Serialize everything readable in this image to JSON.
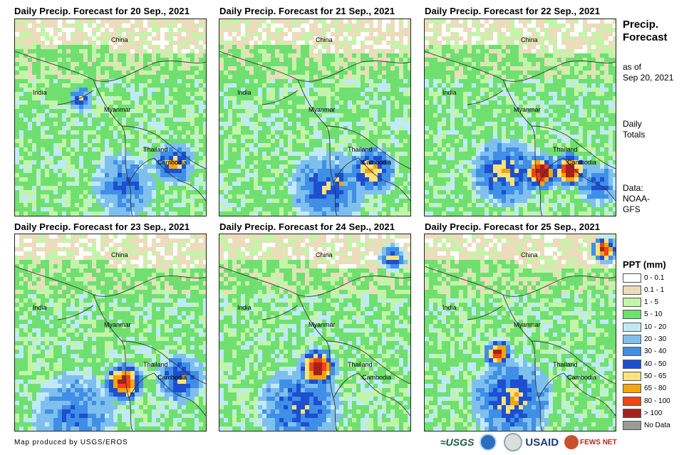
{
  "maps": [
    {
      "title": "Daily Precip. Forecast for 20 Sep., 2021",
      "labels": [
        "China",
        "India",
        "Myanmar",
        "Thailand",
        "Cambodia"
      ]
    },
    {
      "title": "Daily Precip. Forecast for 21 Sep., 2021",
      "labels": [
        "China",
        "India",
        "Myanmar",
        "Thailand",
        "Cambodia"
      ]
    },
    {
      "title": "Daily Precip. Forecast for 22 Sep., 2021",
      "labels": [
        "China",
        "India",
        "Myanmar",
        "Thailand",
        "Cambodia"
      ]
    },
    {
      "title": "Daily Precip. Forecast for 23 Sep., 2021",
      "labels": [
        "China",
        "India",
        "Myanmar",
        "Thailand",
        "Cambodia"
      ]
    },
    {
      "title": "Daily Precip. Forecast for 24 Sep., 2021",
      "labels": [
        "China",
        "India",
        "Myanmar",
        "Thailand",
        "Cambodia"
      ]
    },
    {
      "title": "Daily Precip. Forecast for 25 Sep., 2021",
      "labels": [
        "China",
        "India",
        "Myanmar",
        "Thailand",
        "Cambodia"
      ]
    }
  ],
  "side": {
    "heading_line1": "Precip.",
    "heading_line2": "Forecast",
    "asof_line1": "as of",
    "asof_line2": "Sep 20, 2021",
    "daily_line1": "Daily",
    "daily_line2": "Totals",
    "data_line1": "Data:",
    "data_line2": "NOAA-",
    "data_line3": "GFS"
  },
  "legend": {
    "title": "PPT (mm)",
    "items": [
      {
        "label": "0 - 0.1",
        "color": "#ffffff"
      },
      {
        "label": "0.1 - 1",
        "color": "#ecdcbc"
      },
      {
        "label": "1 - 5",
        "color": "#c2f5a7"
      },
      {
        "label": "5 - 10",
        "color": "#6fe070"
      },
      {
        "label": "10 - 20",
        "color": "#bfeaf7"
      },
      {
        "label": "20 - 30",
        "color": "#7fbfee"
      },
      {
        "label": "30 - 40",
        "color": "#3f8fe6"
      },
      {
        "label": "40 - 50",
        "color": "#1d4fd0"
      },
      {
        "label": "50 - 65",
        "color": "#fbe27c"
      },
      {
        "label": "65 - 80",
        "color": "#f2a50e"
      },
      {
        "label": "80 - 100",
        "color": "#f04414"
      },
      {
        "label": "> 100",
        "color": "#a8201e"
      },
      {
        "label": "No Data",
        "color": "#9a9a9a"
      }
    ]
  },
  "footer": {
    "credit": "Map produced by USGS/EROS",
    "logo_usgs": "≈USGS",
    "logo_usaid": "USAID",
    "logo_fews": "FEWS NET"
  }
}
